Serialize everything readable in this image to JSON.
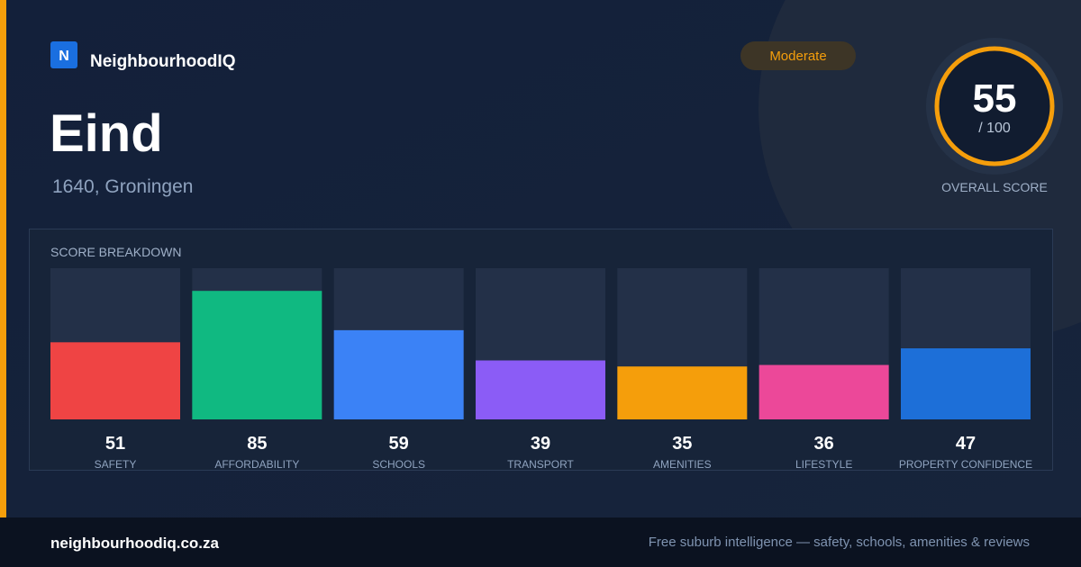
{
  "brand": {
    "logo_letter": "N",
    "name": "NeighbourhoodIQ"
  },
  "suburb": {
    "name": "Eind",
    "location": "1640, Groningen"
  },
  "badge": "Moderate",
  "score": {
    "value": 55,
    "max_label": "/ 100",
    "label": "OVERALL SCORE"
  },
  "breakdown": {
    "title": "SCORE BREAKDOWN",
    "chart_data": {
      "type": "bar",
      "ylim": [
        0,
        100
      ],
      "categories": [
        "SAFETY",
        "AFFORDABILITY",
        "SCHOOLS",
        "TRANSPORT",
        "AMENITIES",
        "LIFESTYLE",
        "PROPERTY CONFIDENCE"
      ],
      "values": [
        51,
        85,
        59,
        39,
        35,
        36,
        47
      ],
      "colors": [
        "#ef4444",
        "#10b981",
        "#3b82f6",
        "#8b5cf6",
        "#f59e0b",
        "#ec4899",
        "#1d6fd8"
      ]
    }
  },
  "footer": {
    "url": "neighbourhoodiq.co.za",
    "tagline": "Free suburb intelligence — safety, schools, amenities & reviews"
  }
}
